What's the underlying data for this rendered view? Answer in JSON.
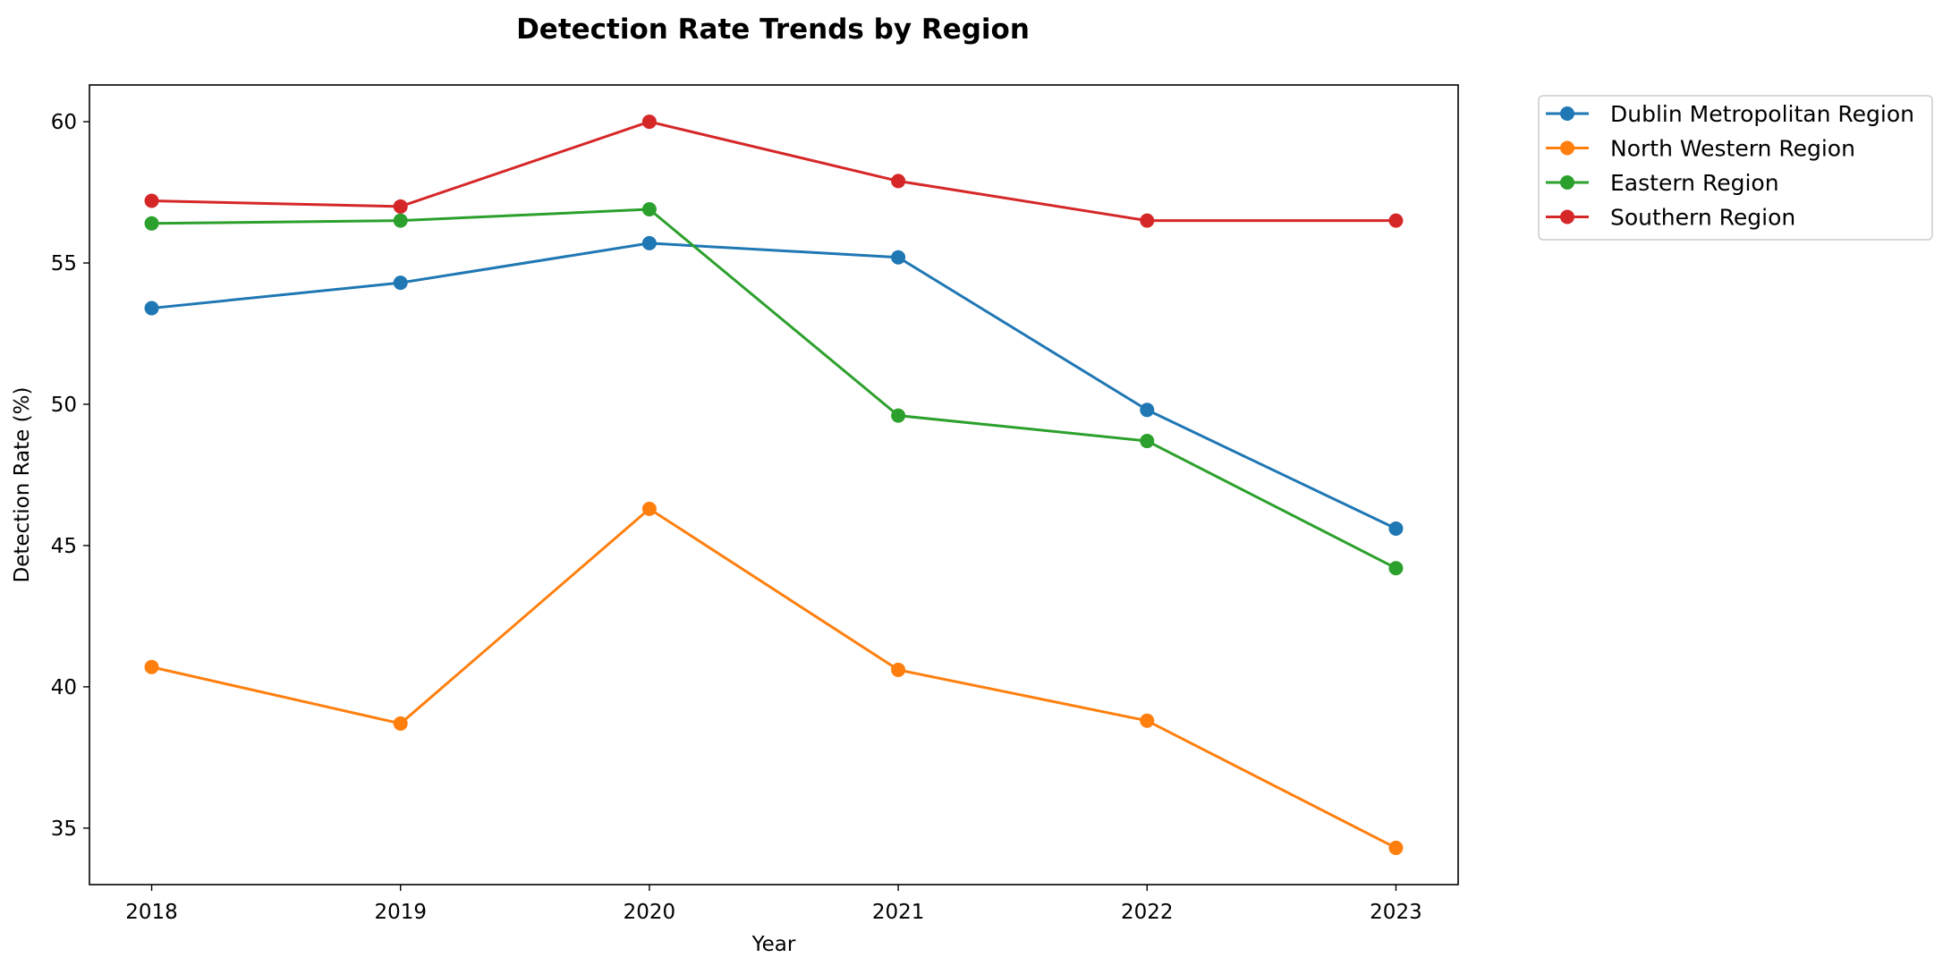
{
  "chart_data": {
    "type": "line",
    "title": "Detection Rate Trends by Region",
    "xlabel": "Year",
    "ylabel": "Detection Rate (%)",
    "x": [
      2018,
      2019,
      2020,
      2021,
      2022,
      2023
    ],
    "x_tick_labels": [
      "2018",
      "2019",
      "2020",
      "2021",
      "2022",
      "2023"
    ],
    "xlim": [
      2017.75,
      2023.25
    ],
    "ylim": [
      33.0,
      61.3
    ],
    "y_ticks": [
      35,
      40,
      45,
      50,
      55,
      60
    ],
    "y_tick_labels": [
      "35",
      "40",
      "45",
      "50",
      "55",
      "60"
    ],
    "grid": false,
    "legend_position": "outside upper right",
    "markers": "circle",
    "series": [
      {
        "name": "Dublin Metropolitan Region",
        "color": "#1f77b4",
        "values": [
          53.4,
          54.3,
          55.7,
          55.2,
          49.8,
          45.6
        ]
      },
      {
        "name": "North Western Region",
        "color": "#ff7f0e",
        "values": [
          40.7,
          38.7,
          46.3,
          40.6,
          38.8,
          34.3
        ]
      },
      {
        "name": "Eastern Region",
        "color": "#2ca02c",
        "values": [
          56.4,
          56.5,
          56.9,
          49.6,
          48.7,
          44.2
        ]
      },
      {
        "name": "Southern Region",
        "color": "#d62728",
        "values": [
          57.2,
          57.0,
          60.0,
          57.9,
          56.5,
          56.5
        ]
      }
    ]
  }
}
